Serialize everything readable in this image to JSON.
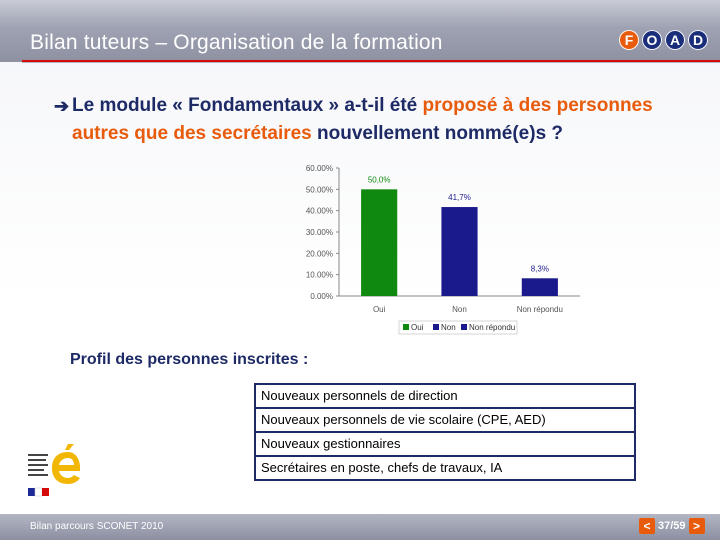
{
  "header": {
    "title": "Bilan tuteurs – Organisation de la formation",
    "logo_letters": [
      "F",
      "O",
      "A",
      "D"
    ]
  },
  "question": {
    "arrow": "➔",
    "part1": "Le module « Fondamentaux » a-t-il été ",
    "part2_highlight": "proposé à des personnes autres que des secrétaires",
    "part3": " nouvellement nommé(e)s ?"
  },
  "chart_data": {
    "type": "bar",
    "categories": [
      "Oui",
      "Non",
      "Non répondu"
    ],
    "values": [
      50.0,
      41.7,
      8.3
    ],
    "data_labels": [
      "50,0%",
      "41,7%",
      "8,3%"
    ],
    "y_tick_labels": [
      "0.00%",
      "10.00%",
      "20.00%",
      "30.00%",
      "40.00%",
      "50.00%",
      "60.00%"
    ],
    "ylim": [
      0,
      60
    ],
    "colors": [
      "#0f8a0f",
      "#1a1a8c",
      "#1a1a8c"
    ],
    "label_colors": [
      "#0f8a0f",
      "#1a1a8c",
      "#1a1a8c"
    ],
    "legend": [
      {
        "name": "Oui",
        "color": "#0f8a0f"
      },
      {
        "name": "Non",
        "color": "#1a1a8c"
      },
      {
        "name": "Non répondu",
        "color": "#1a1a8c"
      }
    ],
    "legend_placement": "bottom",
    "grid": false
  },
  "profil": {
    "title": "Profil des personnes inscrites :",
    "rows": [
      "Nouveaux personnels de direction",
      "Nouveaux personnels de vie scolaire (CPE, AED)",
      "Nouveaux gestionnaires",
      "Secrétaires en poste, chefs de travaux, IA"
    ]
  },
  "footer": {
    "text": "Bilan parcours SCONET 2010",
    "prev": "<",
    "next": ">",
    "page": "37/59"
  },
  "colors": {
    "accent": "#e85b0c",
    "navy": "#1d2a66",
    "rule": "#d40a0a"
  }
}
